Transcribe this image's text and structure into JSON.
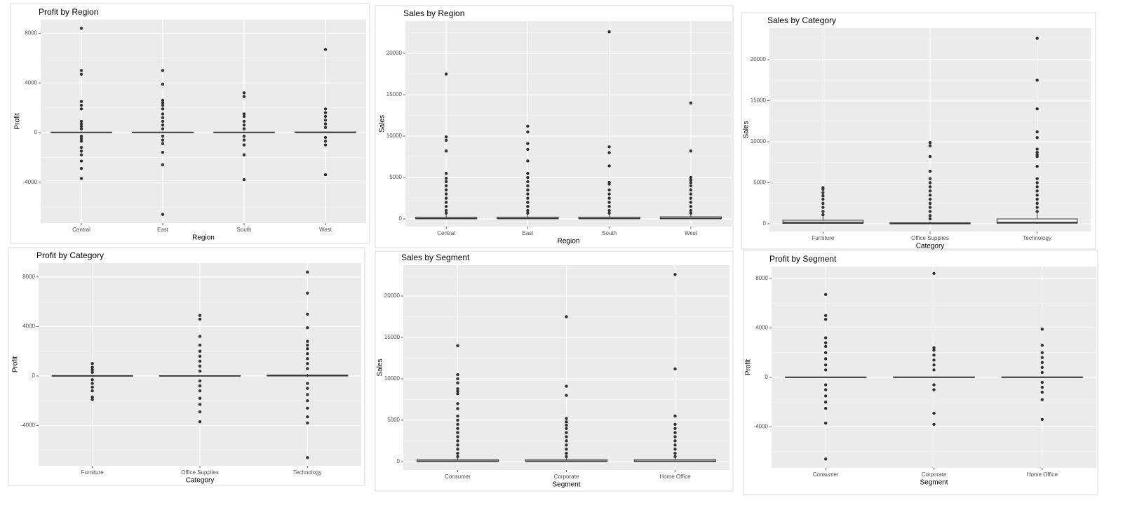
{
  "chart_data": [
    {
      "type": "box",
      "title": "Profit by Region",
      "x_label": "Region",
      "y_label": "Profit",
      "categories": [
        "Central",
        "East",
        "South",
        "West"
      ],
      "boxes": [
        {
          "whisker_low": -40,
          "q1": 2,
          "median": 8,
          "q3": 29,
          "whisker_high": 70,
          "outliers": [
            8400,
            5000,
            4700,
            2500,
            2200,
            1900,
            900,
            700,
            500,
            300,
            -300,
            -500,
            -700,
            -1200,
            -1500,
            -1800,
            -2300,
            -2900,
            -3700
          ]
        },
        {
          "whisker_low": -40,
          "q1": 2,
          "median": 9,
          "q3": 32,
          "whisker_high": 75,
          "outliers": [
            5000,
            3900,
            2600,
            2400,
            2200,
            1900,
            1500,
            1200,
            900,
            600,
            300,
            -300,
            -600,
            -900,
            -1600,
            -2600,
            -6600
          ]
        },
        {
          "whisker_low": -40,
          "q1": 2,
          "median": 9,
          "q3": 30,
          "whisker_high": 70,
          "outliers": [
            3200,
            2900,
            1500,
            1300,
            900,
            600,
            300,
            -300,
            -600,
            -1000,
            -1800,
            -3800
          ]
        },
        {
          "whisker_low": -30,
          "q1": 4,
          "median": 13,
          "q3": 40,
          "whisker_high": 95,
          "outliers": [
            6700,
            1900,
            1600,
            1300,
            1000,
            700,
            400,
            -400,
            -700,
            -1000,
            -3400
          ]
        }
      ],
      "ylim": [
        -7300,
        9100
      ],
      "yticks": [
        -4000,
        0,
        4000,
        8000
      ],
      "grid": true,
      "color": "#333333"
    },
    {
      "type": "box",
      "title": "Sales by Region",
      "x_label": "Region",
      "y_label": "Sales",
      "categories": [
        "Central",
        "East",
        "South",
        "West"
      ],
      "boxes": [
        {
          "whisker_low": 0,
          "q1": 17,
          "median": 46,
          "q3": 200,
          "whisker_high": 470,
          "outliers": [
            17500,
            9900,
            9500,
            8200,
            5500,
            4900,
            4500,
            4000,
            3500,
            3000,
            2500,
            2000,
            1500,
            1000,
            700
          ]
        },
        {
          "whisker_low": 0,
          "q1": 18,
          "median": 55,
          "q3": 215,
          "whisker_high": 510,
          "outliers": [
            11200,
            10500,
            9100,
            8400,
            7000,
            5500,
            5000,
            4500,
            4000,
            3500,
            3000,
            2500,
            2000,
            1500,
            1000,
            700
          ]
        },
        {
          "whisker_low": 0,
          "q1": 18,
          "median": 55,
          "q3": 215,
          "whisker_high": 510,
          "outliers": [
            22600,
            8700,
            8000,
            6400,
            4400,
            4200,
            3500,
            3000,
            2500,
            2000,
            1500,
            1000,
            700
          ]
        },
        {
          "whisker_low": 0,
          "q1": 19,
          "median": 60,
          "q3": 250,
          "whisker_high": 590,
          "outliers": [
            14000,
            8200,
            5000,
            4700,
            4400,
            4000,
            3500,
            3000,
            2500,
            2000,
            1500,
            1000,
            700
          ]
        }
      ],
      "ylim": [
        -930,
        23900
      ],
      "yticks": [
        0,
        5000,
        10000,
        15000,
        20000
      ],
      "grid": true,
      "color": "#333333"
    },
    {
      "type": "box",
      "title": "Sales by Category",
      "x_label": "Category",
      "y_label": "Sales",
      "categories": [
        "Furniture",
        "Office Supplies",
        "Technology"
      ],
      "boxes": [
        {
          "whisker_low": 2,
          "q1": 50,
          "median": 180,
          "q3": 430,
          "whisker_high": 1000,
          "outliers": [
            4400,
            4200,
            3800,
            3400,
            3000,
            2500,
            2000,
            1500,
            1100
          ]
        },
        {
          "whisker_low": 0,
          "q1": 17,
          "median": 27,
          "q3": 120,
          "whisker_high": 270,
          "outliers": [
            9900,
            9500,
            8200,
            6400,
            5500,
            5000,
            4500,
            4000,
            3500,
            3000,
            2500,
            2000,
            1500,
            1000,
            600
          ]
        },
        {
          "whisker_low": 1,
          "q1": 70,
          "median": 170,
          "q3": 590,
          "whisker_high": 1350,
          "outliers": [
            22600,
            17500,
            14000,
            11200,
            10500,
            9100,
            8700,
            8400,
            8200,
            7000,
            5500,
            5000,
            4500,
            4000,
            3500,
            3000,
            2500,
            2000,
            1500
          ]
        }
      ],
      "ylim": [
        -940,
        23850
      ],
      "yticks": [
        0,
        5000,
        10000,
        15000,
        20000
      ],
      "grid": true,
      "color": "#333333"
    },
    {
      "type": "box",
      "title": "Profit by Category",
      "x_label": "Category",
      "y_label": "Profit",
      "categories": [
        "Furniture",
        "Office Supplies",
        "Technology"
      ],
      "boxes": [
        {
          "whisker_low": -60,
          "q1": -10,
          "median": 9,
          "q3": 30,
          "whisker_high": 90,
          "outliers": [
            1000,
            700,
            500,
            300,
            -300,
            -600,
            -900,
            -1200,
            -1700,
            -1900
          ]
        },
        {
          "whisker_low": -20,
          "q1": 2,
          "median": 7,
          "q3": 20,
          "whisker_high": 50,
          "outliers": [
            4900,
            4600,
            3200,
            2500,
            2000,
            1600,
            1200,
            800,
            400,
            -400,
            -800,
            -1200,
            -1800,
            -2300,
            -2900,
            -3700
          ]
        },
        {
          "whisker_low": -80,
          "q1": 6,
          "median": 25,
          "q3": 75,
          "whisker_high": 180,
          "outliers": [
            8400,
            6700,
            5000,
            3900,
            2800,
            2500,
            2200,
            1800,
            1400,
            1000,
            600,
            -600,
            -1000,
            -1500,
            -2000,
            -2600,
            -3300,
            -3800,
            -6600
          ]
        }
      ],
      "ylim": [
        -7260,
        9130
      ],
      "yticks": [
        -4000,
        0,
        4000,
        8000
      ],
      "grid": true,
      "color": "#333333"
    },
    {
      "type": "box",
      "title": "Sales by Segment",
      "x_label": "Segment",
      "y_label": "Sales",
      "categories": [
        "Consumer",
        "Corporate",
        "Home Office"
      ],
      "boxes": [
        {
          "whisker_low": 0,
          "q1": 17,
          "median": 54,
          "q3": 210,
          "whisker_high": 500,
          "outliers": [
            14000,
            10500,
            10000,
            9500,
            8800,
            8500,
            8200,
            7000,
            6400,
            5500,
            5000,
            4500,
            4000,
            3500,
            3000,
            2500,
            2000,
            1500,
            1000,
            600
          ]
        },
        {
          "whisker_low": 0,
          "q1": 18,
          "median": 56,
          "q3": 230,
          "whisker_high": 540,
          "outliers": [
            17500,
            9100,
            8000,
            5200,
            4800,
            4400,
            4000,
            3500,
            3000,
            2500,
            2000,
            1500,
            1000,
            600
          ]
        },
        {
          "whisker_low": 0,
          "q1": 17,
          "median": 53,
          "q3": 210,
          "whisker_high": 500,
          "outliers": [
            22600,
            11200,
            5500,
            4500,
            4000,
            3500,
            3000,
            2500,
            2000,
            1500,
            1000,
            600
          ]
        }
      ],
      "ylim": [
        -1020,
        23730
      ],
      "yticks": [
        0,
        5000,
        10000,
        15000,
        20000
      ],
      "grid": true,
      "color": "#333333"
    },
    {
      "type": "box",
      "title": "Profit by Segment",
      "x_label": "Segment",
      "y_label": "Profit",
      "categories": [
        "Consumer",
        "Corporate",
        "Home Office"
      ],
      "boxes": [
        {
          "whisker_low": -40,
          "q1": 2,
          "median": 8,
          "q3": 29,
          "whisker_high": 70,
          "outliers": [
            6700,
            5000,
            4700,
            3200,
            2800,
            2500,
            2000,
            1500,
            1000,
            600,
            -600,
            -1000,
            -1500,
            -2000,
            -2500,
            -3700,
            -6600
          ]
        },
        {
          "whisker_low": -40,
          "q1": 2,
          "median": 9,
          "q3": 32,
          "whisker_high": 75,
          "outliers": [
            8400,
            2400,
            2200,
            1800,
            1400,
            1000,
            600,
            -600,
            -1000,
            -2900,
            -3800
          ]
        },
        {
          "whisker_low": -40,
          "q1": 2,
          "median": 9,
          "q3": 34,
          "whisker_high": 80,
          "outliers": [
            3900,
            2600,
            2000,
            1600,
            1200,
            800,
            400,
            -400,
            -800,
            -1200,
            -1800,
            -3400
          ]
        }
      ],
      "ylim": [
        -7320,
        8960
      ],
      "yticks": [
        -4000,
        0,
        4000,
        8000
      ],
      "grid": true,
      "color": "#333333"
    }
  ]
}
